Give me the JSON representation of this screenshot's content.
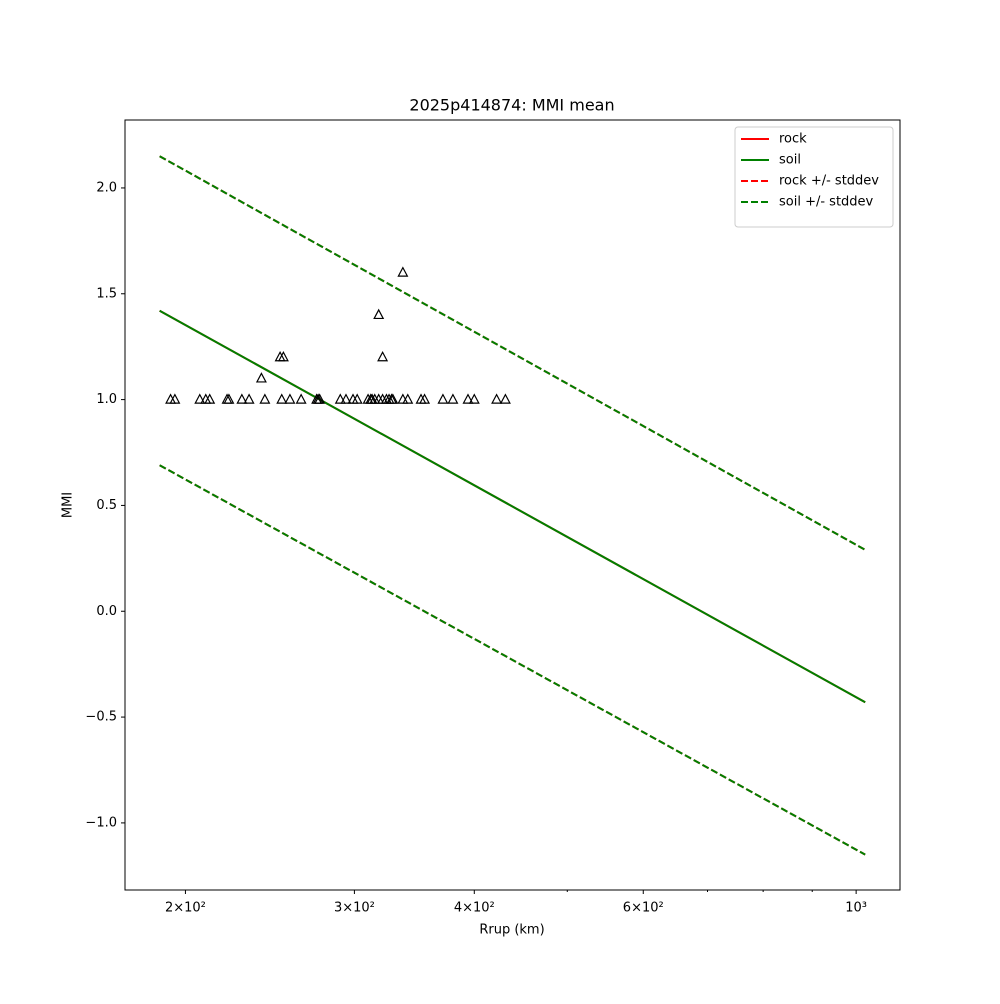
{
  "chart_data": {
    "type": "line",
    "title": "2025p414874: MMI mean",
    "xlabel": "Rrup (km)",
    "ylabel": "MMI",
    "xscale": "log",
    "xlim": [
      173,
      1111
    ],
    "ylim": [
      -1.317,
      2.321
    ],
    "xticks": [
      {
        "value": 200,
        "label": "2×10²"
      },
      {
        "value": 300,
        "label": "3×10²"
      },
      {
        "value": 400,
        "label": "4×10²"
      },
      {
        "value": 600,
        "label": "6×10²"
      },
      {
        "value": 1000,
        "label": "10³"
      }
    ],
    "xminorticks": [
      500,
      700,
      800,
      900
    ],
    "yticks": [
      {
        "value": -1,
        "label": "−1.0"
      },
      {
        "value": -0.5,
        "label": "−0.5"
      },
      {
        "value": 0,
        "label": "0.0"
      },
      {
        "value": 0.5,
        "label": "0.5"
      },
      {
        "value": 1,
        "label": "1.0"
      },
      {
        "value": 1.5,
        "label": "1.5"
      },
      {
        "value": 2,
        "label": "2.0"
      }
    ],
    "legend": "upper right",
    "x": [
      188,
      1022
    ],
    "series": [
      {
        "name": "rock",
        "color": "#ff0000",
        "dashed": false,
        "values": [
          1.42,
          -0.43
        ]
      },
      {
        "name": "soil",
        "color": "#008000",
        "dashed": false,
        "values": [
          1.42,
          -0.43
        ]
      },
      {
        "name": "rock +/- stddev",
        "color": "#ff0000",
        "dashed": true,
        "upper": [
          2.15,
          0.29
        ],
        "lower": [
          0.69,
          -1.15
        ]
      },
      {
        "name": "soil +/- stddev",
        "color": "#008000",
        "dashed": true,
        "upper": [
          2.15,
          0.29
        ],
        "lower": [
          0.69,
          -1.15
        ]
      }
    ],
    "points": {
      "color": "#000000",
      "x": [
        193,
        195,
        207,
        210,
        212,
        221,
        222,
        229,
        233,
        240,
        242,
        251,
        252,
        253,
        257,
        264,
        274,
        275,
        276,
        290,
        294,
        299,
        302,
        310,
        312,
        313,
        315,
        318,
        318,
        321,
        321,
        324,
        326,
        328,
        329,
        337,
        337,
        341,
        352,
        355,
        371,
        380,
        394,
        400,
        422,
        431
      ],
      "values": [
        1,
        1,
        1,
        1,
        1,
        1,
        1,
        1,
        1,
        1.1,
        1,
        1.2,
        1,
        1.2,
        1,
        1,
        1,
        1,
        1,
        1,
        1,
        1,
        1,
        1,
        1,
        1,
        1,
        1,
        1.4,
        1,
        1.2,
        1,
        1,
        1,
        1,
        1,
        1.6,
        1,
        1,
        1,
        1,
        1,
        1,
        1,
        1,
        1
      ]
    }
  }
}
